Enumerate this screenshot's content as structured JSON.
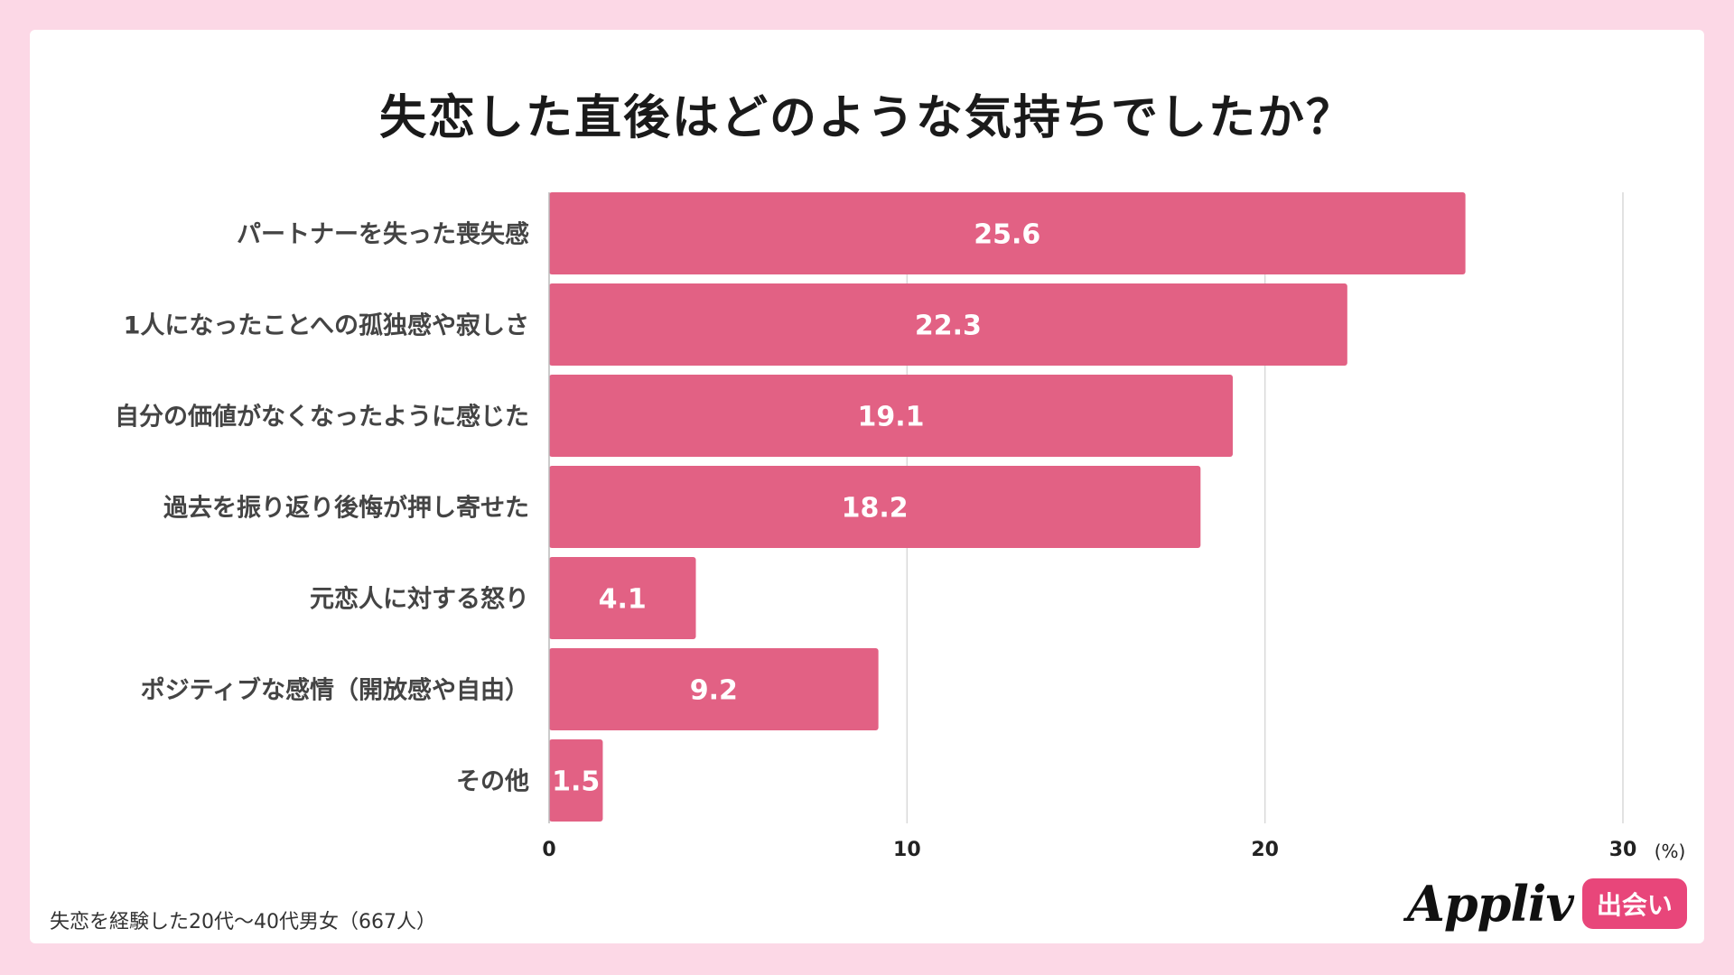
{
  "page": {
    "title": "失恋した直後はどのような気持ちでしたか？",
    "footnote": "失恋を経験した20代〜40代男女（667人）",
    "logo": {
      "brand": "Appliv",
      "badge": "出会い"
    }
  },
  "chart_data": {
    "type": "bar",
    "orientation": "horizontal",
    "title": "失恋した直後はどのような気持ちでしたか？",
    "categories": [
      "パートナーを失った喪失感",
      "1人になったことへの孤独感や寂しさ",
      "自分の価値がなくなったように感じた",
      "過去を振り返り後悔が押し寄せた",
      "元恋人に対する怒り",
      "ポジティブな感情（開放感や自由）",
      "その他"
    ],
    "values": [
      25.6,
      22.3,
      19.1,
      18.2,
      4.1,
      9.2,
      1.5
    ],
    "value_labels": [
      "25.6",
      "22.3",
      "19.1",
      "18.2",
      "4.1",
      "9.2",
      "1.5"
    ],
    "xlim": [
      0,
      30
    ],
    "ticks": [
      "0",
      "10",
      "20",
      "30"
    ],
    "tick_values": [
      0,
      10,
      20,
      30
    ],
    "unit": "(%)",
    "bar_color": "#e26184",
    "grid": true
  }
}
